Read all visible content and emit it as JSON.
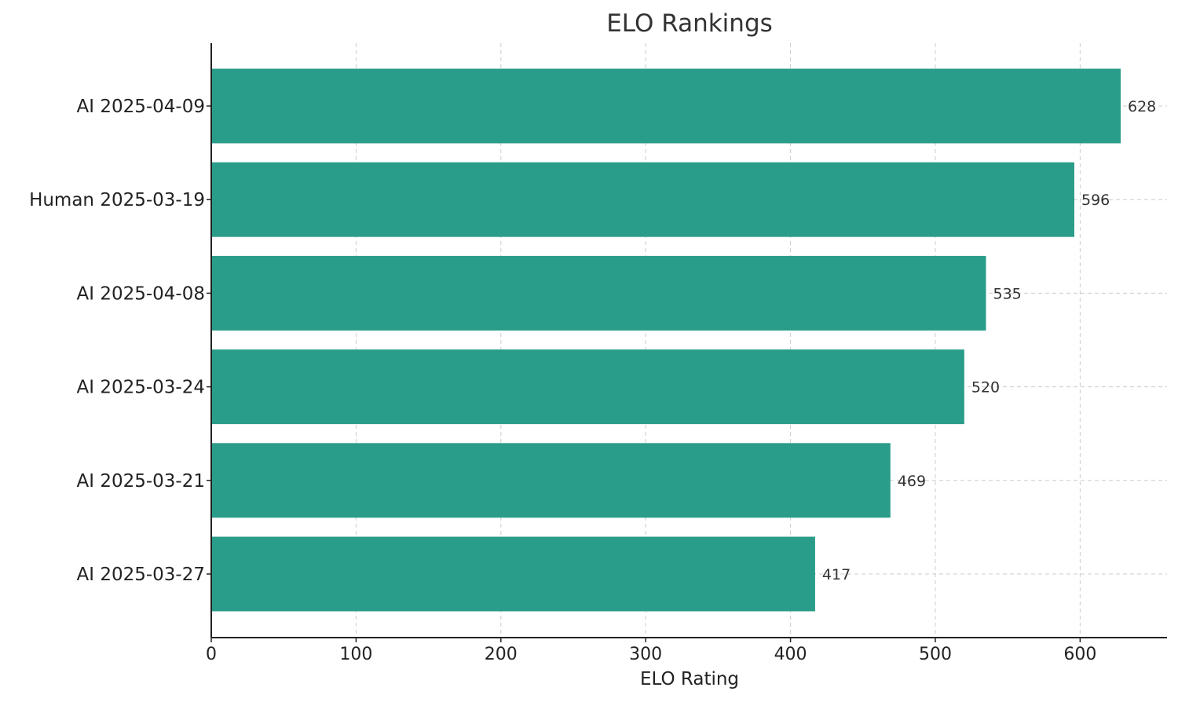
{
  "chart_data": {
    "type": "bar",
    "orientation": "horizontal",
    "title": "ELO Rankings",
    "xlabel": "ELO Rating",
    "ylabel": "",
    "categories": [
      "AI 2025-04-09",
      "Human 2025-03-19",
      "AI 2025-04-08",
      "AI 2025-03-24",
      "AI 2025-03-21",
      "AI 2025-03-27"
    ],
    "values": [
      628,
      596,
      535,
      520,
      469,
      417
    ],
    "value_labels": [
      "628",
      "596",
      "535",
      "520",
      "469",
      "417"
    ],
    "xlim": [
      0,
      660
    ],
    "x_ticks": [
      0,
      100,
      200,
      300,
      400,
      500,
      600
    ],
    "x_tick_labels": [
      "0",
      "100",
      "200",
      "300",
      "400",
      "500",
      "600"
    ],
    "grid": true,
    "bar_color": "#2a9d8a"
  }
}
